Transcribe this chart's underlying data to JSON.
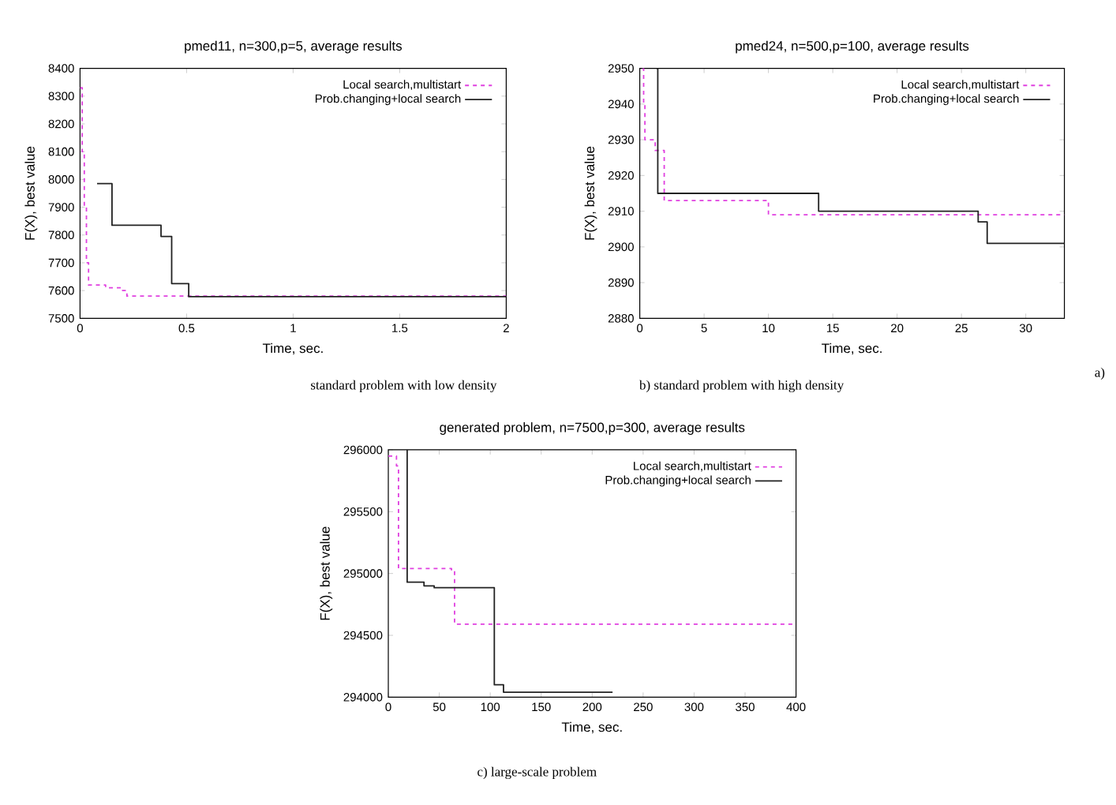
{
  "chart_data": [
    {
      "type": "step",
      "title": "pmed11, n=300,p=5, average results",
      "xlabel": "Time, sec.",
      "ylabel": "F(X), best value",
      "annotations": [
        "standard problem with low density",
        "a)"
      ],
      "xlim": [
        0,
        2
      ],
      "ylim": [
        7500,
        8400
      ],
      "xticks": [
        0,
        0.5,
        1,
        1.5,
        2
      ],
      "yticks": [
        7500,
        7600,
        7700,
        7800,
        7900,
        8000,
        8100,
        8200,
        8300,
        8400
      ],
      "legend": "top right",
      "series": [
        {
          "name": "Local search,multistart",
          "color": "#e040e0",
          "line_style": "dashed",
          "x": [
            0,
            0.01,
            0.02,
            0.03,
            0.04,
            0.12,
            0.2,
            0.22,
            2
          ],
          "values": [
            8330,
            8100,
            7900,
            7700,
            7620,
            7610,
            7600,
            7580,
            7580
          ]
        },
        {
          "name": "Prob.changing+local search",
          "color": "#222222",
          "line_style": "solid",
          "x": [
            0.08,
            0.15,
            0.38,
            0.43,
            0.51,
            2
          ],
          "values": [
            7985,
            7835,
            7795,
            7625,
            7578,
            7578
          ]
        }
      ]
    },
    {
      "type": "step",
      "title": "pmed24, n=500,p=100, average results",
      "xlabel": "Time, sec.",
      "ylabel": "F(X), best value",
      "annotations": [
        "b) standard problem with high density"
      ],
      "xlim": [
        0,
        33
      ],
      "ylim": [
        2880,
        2950
      ],
      "xticks": [
        0,
        5,
        10,
        15,
        20,
        25,
        30
      ],
      "yticks": [
        2880,
        2890,
        2900,
        2910,
        2920,
        2930,
        2940,
        2950
      ],
      "legend": "top right",
      "series": [
        {
          "name": "Local search,multistart",
          "color": "#e040e0",
          "line_style": "dashed",
          "x": [
            0.2,
            0.3,
            0.4,
            1.2,
            1.9,
            10,
            33
          ],
          "values": [
            2950,
            2940,
            2930,
            2927,
            2913,
            2909,
            2909
          ]
        },
        {
          "name": "Prob.changing+local search",
          "color": "#222222",
          "line_style": "solid",
          "x": [
            1.3,
            1.4,
            13.9,
            26.3,
            27,
            33
          ],
          "values": [
            2950,
            2915,
            2910,
            2907,
            2901,
            2901
          ]
        }
      ]
    },
    {
      "type": "step",
      "title": "generated problem, n=7500,p=300, average results",
      "xlabel": "Time, sec.",
      "ylabel": "F(X), best value",
      "annotations": [
        "c) large-scale problem"
      ],
      "xlim": [
        0,
        400
      ],
      "ylim": [
        294000,
        296000
      ],
      "xticks": [
        0,
        50,
        100,
        150,
        200,
        250,
        300,
        350,
        400
      ],
      "yticks": [
        294000,
        294500,
        295000,
        295500,
        296000
      ],
      "legend": "top right",
      "series": [
        {
          "name": "Local search,multistart",
          "color": "#e040e0",
          "line_style": "dashed",
          "x": [
            0,
            8,
            10,
            62,
            65,
            400
          ],
          "values": [
            295950,
            295870,
            295040,
            295020,
            294590,
            294590
          ]
        },
        {
          "name": "Prob.changing+local search",
          "color": "#222222",
          "line_style": "solid",
          "x": [
            18,
            18.5,
            35,
            45,
            104,
            113,
            220
          ],
          "values": [
            296000,
            294930,
            294900,
            294885,
            294100,
            294040,
            294040
          ]
        }
      ]
    }
  ]
}
